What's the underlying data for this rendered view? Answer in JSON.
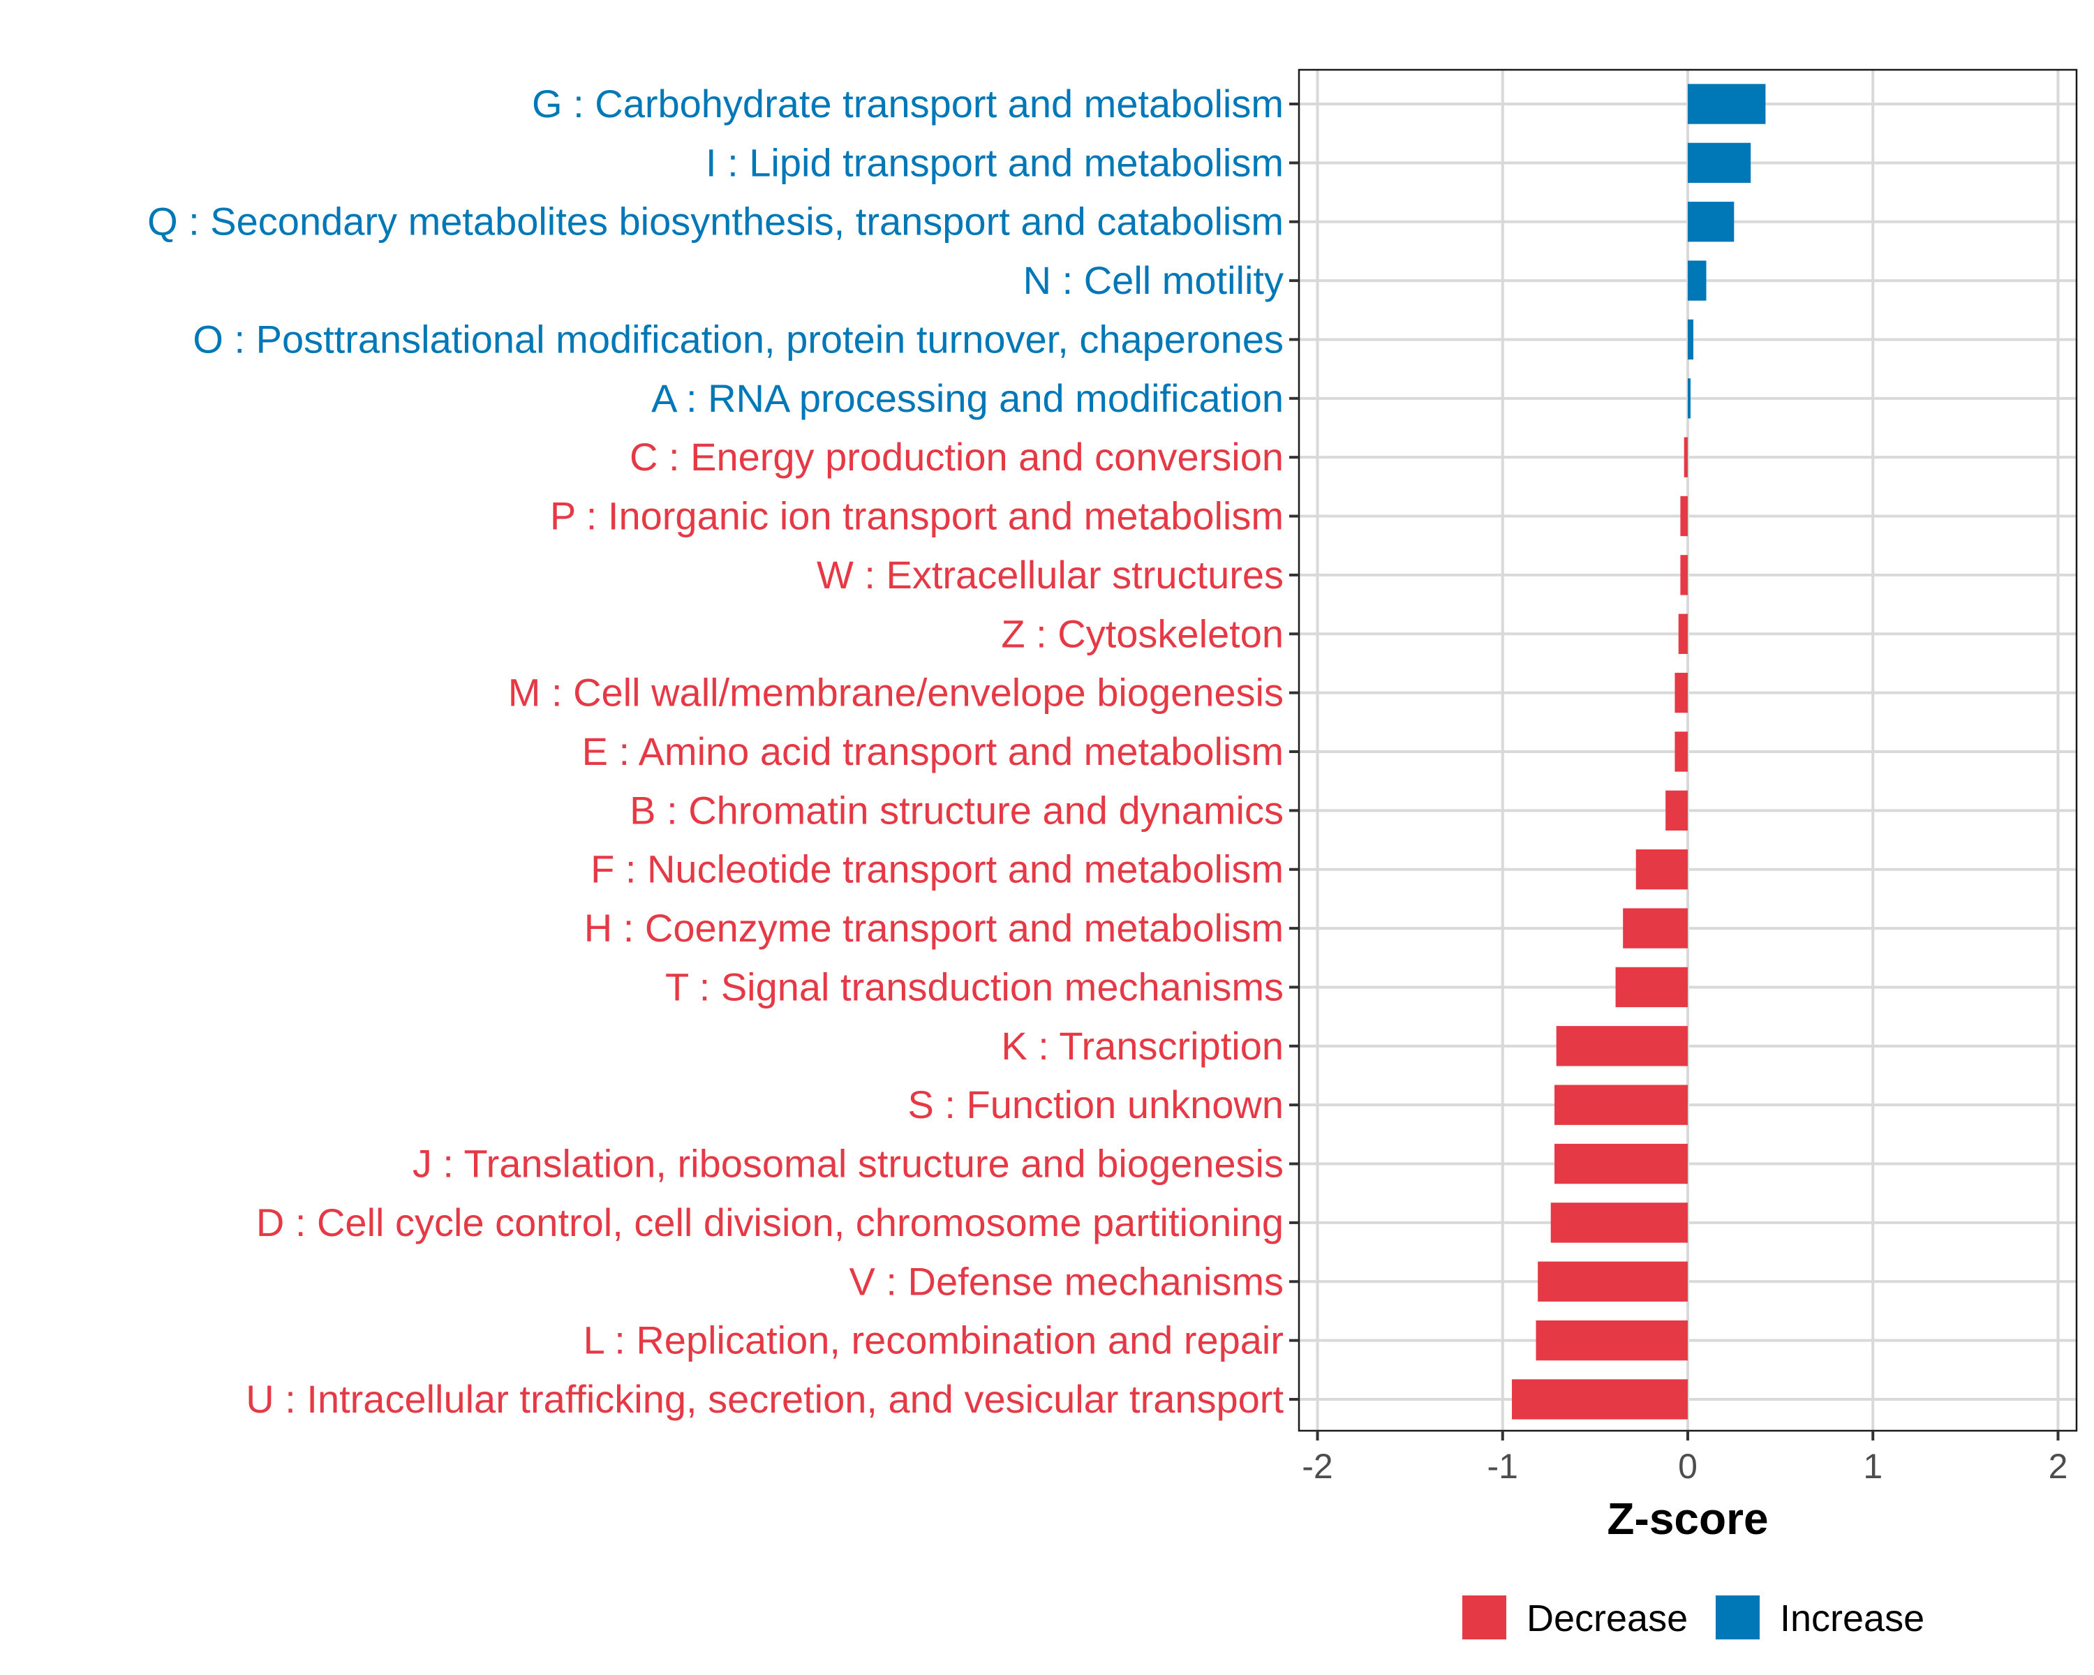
{
  "chart_data": {
    "type": "bar",
    "orientation": "horizontal",
    "title": "",
    "xlabel": "Z-score",
    "ylabel": "",
    "xlim": [
      -2.1,
      2.1
    ],
    "x_ticks": [
      "-2",
      "-1",
      "0",
      "1",
      "2"
    ],
    "x_tick_values": [
      -2,
      -1,
      0,
      1,
      2
    ],
    "grid": true,
    "legend_position": "bottom",
    "legend": [
      {
        "label": "Decrease",
        "color": "#E63946"
      },
      {
        "label": "Increase",
        "color": "#0077B6"
      }
    ],
    "colors": {
      "Decrease": "#E63946",
      "Increase": "#0077B6"
    },
    "categories": [
      {
        "label": "G : Carbohydrate transport and metabolism",
        "value": 0.42,
        "group": "Increase"
      },
      {
        "label": "I : Lipid transport and metabolism",
        "value": 0.34,
        "group": "Increase"
      },
      {
        "label": "Q : Secondary metabolites biosynthesis, transport and catabolism",
        "value": 0.25,
        "group": "Increase"
      },
      {
        "label": "N : Cell motility",
        "value": 0.1,
        "group": "Increase"
      },
      {
        "label": "O : Posttranslational modification, protein turnover, chaperones",
        "value": 0.03,
        "group": "Increase"
      },
      {
        "label": "A : RNA processing and modification",
        "value": 0.015,
        "group": "Increase"
      },
      {
        "label": "C : Energy production and conversion",
        "value": -0.02,
        "group": "Decrease"
      },
      {
        "label": "P : Inorganic ion transport and metabolism",
        "value": -0.04,
        "group": "Decrease"
      },
      {
        "label": "W : Extracellular structures",
        "value": -0.04,
        "group": "Decrease"
      },
      {
        "label": "Z : Cytoskeleton",
        "value": -0.05,
        "group": "Decrease"
      },
      {
        "label": "M : Cell wall/membrane/envelope biogenesis",
        "value": -0.07,
        "group": "Decrease"
      },
      {
        "label": "E : Amino acid transport and metabolism",
        "value": -0.07,
        "group": "Decrease"
      },
      {
        "label": "B : Chromatin structure and dynamics",
        "value": -0.12,
        "group": "Decrease"
      },
      {
        "label": "F : Nucleotide transport and metabolism",
        "value": -0.28,
        "group": "Decrease"
      },
      {
        "label": "H : Coenzyme transport and metabolism",
        "value": -0.35,
        "group": "Decrease"
      },
      {
        "label": "T : Signal transduction mechanisms",
        "value": -0.39,
        "group": "Decrease"
      },
      {
        "label": "K : Transcription",
        "value": -0.71,
        "group": "Decrease"
      },
      {
        "label": "S : Function unknown",
        "value": -0.72,
        "group": "Decrease"
      },
      {
        "label": "J : Translation, ribosomal structure and biogenesis",
        "value": -0.72,
        "group": "Decrease"
      },
      {
        "label": "D : Cell cycle control, cell division, chromosome partitioning",
        "value": -0.74,
        "group": "Decrease"
      },
      {
        "label": "V : Defense mechanisms",
        "value": -0.81,
        "group": "Decrease"
      },
      {
        "label": "L : Replication, recombination and repair",
        "value": -0.82,
        "group": "Decrease"
      },
      {
        "label": "U : Intracellular trafficking, secretion, and vesicular transport",
        "value": -0.95,
        "group": "Decrease"
      }
    ]
  }
}
